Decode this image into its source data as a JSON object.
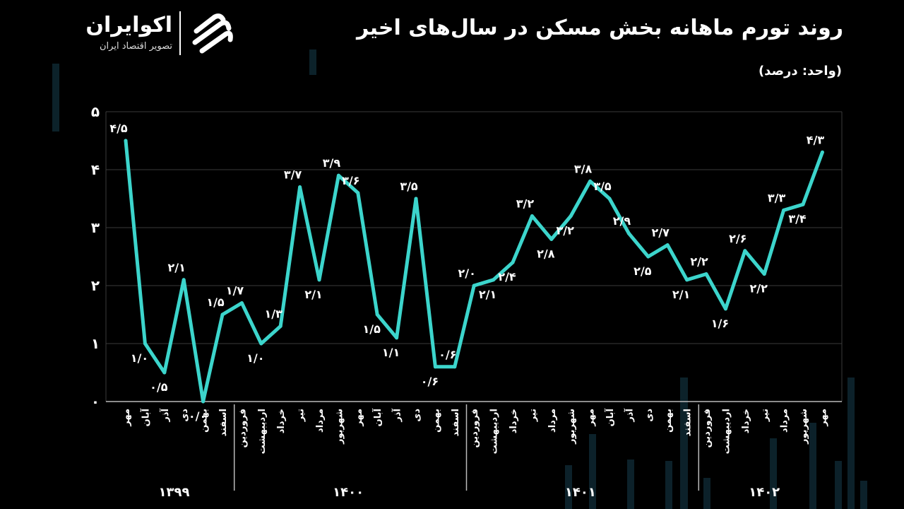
{
  "title": "روند تورم ماهانه بخش مسکن در سال‌های اخیر",
  "unit_label": "(واحد: درصد)",
  "brand": {
    "name": "اکوایران",
    "tagline": "تصویر اقتصاد ایران"
  },
  "colors": {
    "background": "#000000",
    "line": "#3cd5cc",
    "grid": "#3a3a3a",
    "text": "#ffffff"
  },
  "chart_data": {
    "type": "line",
    "title": "روند تورم ماهانه بخش مسکن در سال‌های اخیر",
    "xlabel": "",
    "ylabel": "",
    "ylim": [
      0,
      5
    ],
    "y_ticks": [
      "۰",
      "۱",
      "۲",
      "۳",
      "۴",
      "۵"
    ],
    "grid": true,
    "categories": [
      "مهر",
      "آبان",
      "آذر",
      "دی",
      "بهمن",
      "اسفند",
      "فروردین",
      "اردیبهشت",
      "خرداد",
      "تیر",
      "مرداد",
      "شهریور",
      "مهر",
      "آبان",
      "آذر",
      "دی",
      "بهمن",
      "اسفند",
      "فروردین",
      "اردیبهشت",
      "خرداد",
      "تیر",
      "مرداد",
      "شهریور",
      "مهر",
      "آبان",
      "آذر",
      "دی",
      "بهمن",
      "اسفند",
      "فروردین",
      "اردیبهشت",
      "خرداد",
      "تیر",
      "مرداد",
      "شهریور",
      "مهر"
    ],
    "values": [
      4.5,
      1.0,
      0.5,
      2.1,
      0.0,
      1.5,
      1.7,
      1.0,
      1.3,
      3.7,
      2.1,
      3.9,
      3.6,
      1.5,
      1.1,
      3.5,
      0.6,
      0.6,
      2.0,
      2.1,
      2.4,
      3.2,
      2.8,
      3.2,
      3.8,
      3.5,
      2.9,
      2.5,
      2.7,
      2.1,
      2.2,
      1.6,
      2.6,
      2.2,
      3.3,
      3.4,
      4.3
    ],
    "data_labels": [
      "۴/۵",
      "۱/۰",
      "۰/۵",
      "۲/۱",
      "۰/۰",
      "۱/۵",
      "۱/۷",
      "۱/۰",
      "۱/۳",
      "۳/۷",
      "۲/۱",
      "۳/۹",
      "۳/۶",
      "۱/۵",
      "۱/۱",
      "۳/۵",
      "۰/۶",
      "۰/۶",
      "۲/۰",
      "۲/۱",
      "۲/۴",
      "۳/۲",
      "۲/۸",
      "۳/۲",
      "۳/۸",
      "۳/۵",
      "۲/۹",
      "۲/۵",
      "۲/۷",
      "۲/۱",
      "۲/۲",
      "۱/۶",
      "۲/۶",
      "۲/۲",
      "۳/۳",
      "۳/۴",
      "۴/۳"
    ],
    "label_position": [
      "up",
      "down",
      "down",
      "up",
      "down",
      "up",
      "up",
      "down",
      "up",
      "up",
      "down",
      "up",
      "up",
      "down",
      "down",
      "up",
      "down",
      "up",
      "up",
      "down",
      "down",
      "up",
      "down",
      "down",
      "up",
      "up",
      "up",
      "down",
      "up",
      "down",
      "up",
      "down",
      "up",
      "down",
      "up",
      "down",
      "up"
    ],
    "year_groups": [
      {
        "label": "۱۳۹۹",
        "start": 0,
        "end": 5
      },
      {
        "label": "۱۴۰۰",
        "start": 6,
        "end": 17
      },
      {
        "label": "۱۴۰۱",
        "start": 18,
        "end": 29
      },
      {
        "label": "۱۴۰۲",
        "start": 30,
        "end": 36
      }
    ]
  }
}
